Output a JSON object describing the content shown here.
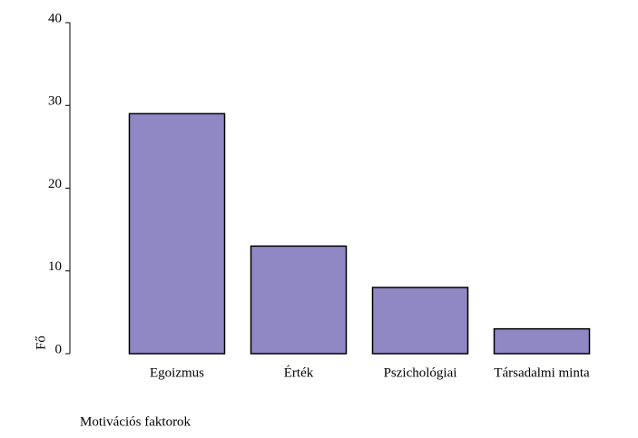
{
  "chart_data": {
    "type": "bar",
    "categories": [
      "Egoizmus",
      "Érték",
      "Pszichológiai",
      "Társadalmi minta"
    ],
    "values": [
      29,
      13,
      8,
      3
    ],
    "color": "#8f88c4",
    "ylim": [
      0,
      40
    ],
    "yticks": [
      0,
      10,
      20,
      30,
      40
    ],
    "y_label": "Fő",
    "x_label": "Motivációs faktorok"
  }
}
